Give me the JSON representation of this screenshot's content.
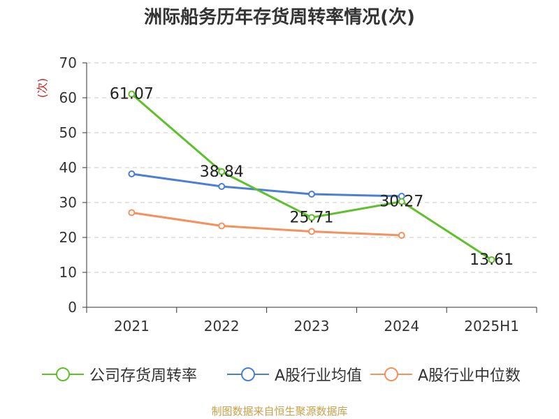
{
  "title": "洲际船务历年存货周转率情况(次)",
  "source_note": "制图数据来自恒生聚源数据库",
  "chart_data": {
    "type": "line",
    "categories": [
      "2021",
      "2022",
      "2023",
      "2024",
      "2025H1"
    ],
    "ylabel": "(次)",
    "ylim": [
      0,
      70
    ],
    "yticks": [
      0,
      10,
      20,
      30,
      40,
      50,
      60,
      70
    ],
    "grid": true,
    "legend_position": "bottom",
    "series": [
      {
        "name": "公司存货周转率",
        "color": "#5ec12b",
        "values": [
          61.07,
          38.84,
          25.71,
          30.27,
          13.61
        ],
        "labels": [
          "61.07",
          "38.84",
          "25.71",
          "30.27",
          "13.61"
        ]
      },
      {
        "name": "A股行业均值",
        "color": "#4b7fd6",
        "values": [
          38.2,
          34.6,
          32.4,
          31.8,
          null
        ]
      },
      {
        "name": "A股行业中位数",
        "color": "#f4915e",
        "values": [
          27.1,
          23.3,
          21.7,
          20.6,
          null
        ]
      }
    ]
  }
}
